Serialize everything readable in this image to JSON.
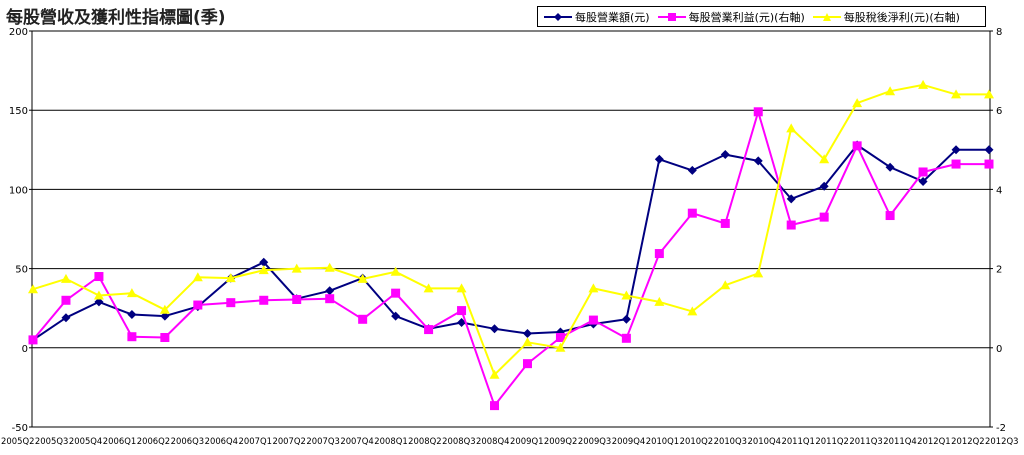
{
  "chart_data": {
    "type": "line",
    "title": "每股營收及獲利性指標圖(季)",
    "categories": [
      "2005Q2",
      "2005Q3",
      "2005Q4",
      "2006Q1",
      "2006Q2",
      "2006Q3",
      "2006Q4",
      "2007Q1",
      "2007Q2",
      "2007Q3",
      "2007Q4",
      "2008Q1",
      "2008Q2",
      "2008Q3",
      "2008Q4",
      "2009Q1",
      "2009Q2",
      "2009Q3",
      "2009Q4",
      "2010Q1",
      "2010Q2",
      "2010Q3",
      "2010Q4",
      "2011Q1",
      "2011Q2",
      "2011Q3",
      "2011Q4",
      "2012Q1",
      "2012Q2",
      "2012Q3"
    ],
    "y_left": {
      "min": -50,
      "max": 200,
      "ticks": [
        "200",
        "150",
        "100",
        "50",
        "0",
        "-50"
      ]
    },
    "y_right": {
      "min": -2,
      "max": 8,
      "ticks": [
        "8",
        "6",
        "4",
        "2",
        "0",
        "-2"
      ]
    },
    "grid": true,
    "legend_position": "top-right",
    "series": [
      {
        "name": "每股營業額(元)",
        "axis": "left",
        "color": "#000080",
        "marker": "diamond",
        "values": [
          5,
          19,
          29,
          21,
          20,
          26,
          44,
          54,
          31,
          36,
          44,
          20,
          12,
          16,
          12,
          9,
          10,
          15,
          18,
          119,
          112,
          122,
          118,
          94,
          102,
          128,
          114,
          105,
          125,
          125
        ]
      },
      {
        "name": "每股營業利益(元)(右軸)",
        "axis": "right",
        "color": "#ff00ff",
        "marker": "square",
        "values": [
          0.2,
          1.2,
          1.8,
          0.28,
          0.26,
          1.08,
          1.14,
          1.2,
          1.22,
          1.24,
          0.72,
          1.38,
          0.46,
          0.94,
          -1.46,
          -0.4,
          0.26,
          0.7,
          0.24,
          2.38,
          3.4,
          3.14,
          5.96,
          3.1,
          3.3,
          5.1,
          3.34,
          4.44,
          4.64,
          4.64
        ]
      },
      {
        "name": "每股稅後淨利(元)(右軸)",
        "axis": "right",
        "color": "#ffff00",
        "marker": "triangle",
        "values": [
          1.48,
          1.74,
          1.32,
          1.38,
          0.96,
          1.78,
          1.76,
          1.96,
          2.0,
          2.02,
          1.74,
          1.92,
          1.5,
          1.5,
          -0.68,
          0.14,
          0.0,
          1.5,
          1.32,
          1.16,
          0.92,
          1.58,
          1.88,
          5.54,
          4.76,
          6.18,
          6.48,
          6.64,
          6.4,
          6.4
        ]
      }
    ]
  }
}
